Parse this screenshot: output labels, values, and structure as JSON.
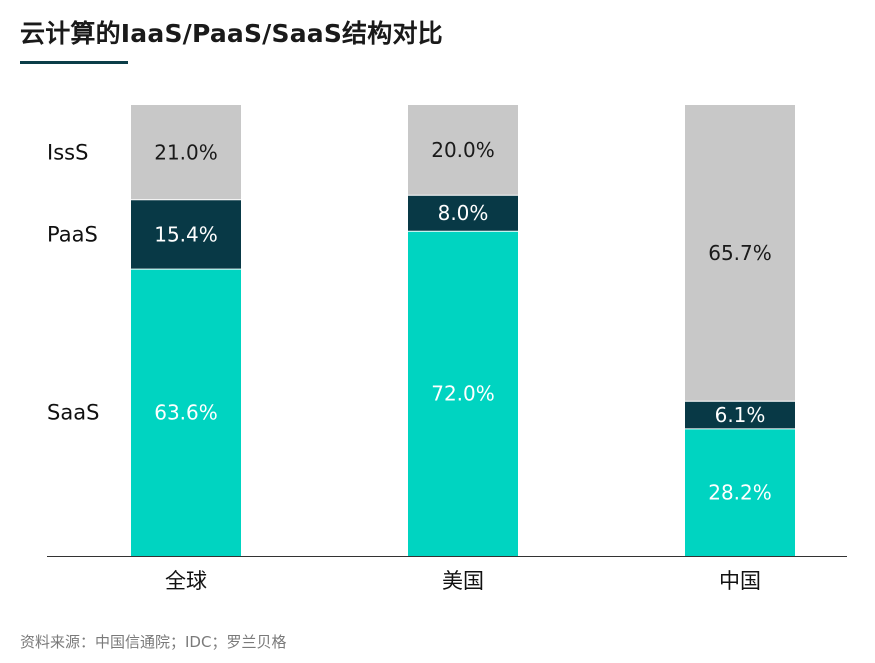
{
  "title": "云计算的IaaS/PaaS/SaaS结构对比",
  "source": "资料来源：中国信通院；IDC；罗兰贝格",
  "colors": {
    "iaas": "#c8c8c8",
    "paas": "#083946",
    "saas": "#00d4c1",
    "axis": "#333333",
    "title_rule": "#0b3d48"
  },
  "chart_data": {
    "type": "bar",
    "stacked": true,
    "percent": true,
    "categories": [
      "全球",
      "美国",
      "中国"
    ],
    "row_labels": [
      "IssS",
      "PaaS",
      "SaaS"
    ],
    "series": [
      {
        "name": "SaaS",
        "values": [
          63.6,
          72.0,
          28.2
        ],
        "labels": [
          "63.6%",
          "72.0%",
          "28.2%"
        ],
        "color": "#00d4c1",
        "text_color": "#ffffff"
      },
      {
        "name": "PaaS",
        "values": [
          15.4,
          8.0,
          6.1
        ],
        "labels": [
          "15.4%",
          "8.0%",
          "6.1%"
        ],
        "color": "#083946",
        "text_color": "#ffffff"
      },
      {
        "name": "IssS",
        "values": [
          21.0,
          20.0,
          65.7
        ],
        "labels": [
          "21.0%",
          "20.0%",
          "65.7%"
        ],
        "color": "#c8c8c8",
        "text_color": "#1a1a1a"
      }
    ],
    "ylim": [
      0,
      100
    ],
    "grid": false
  }
}
